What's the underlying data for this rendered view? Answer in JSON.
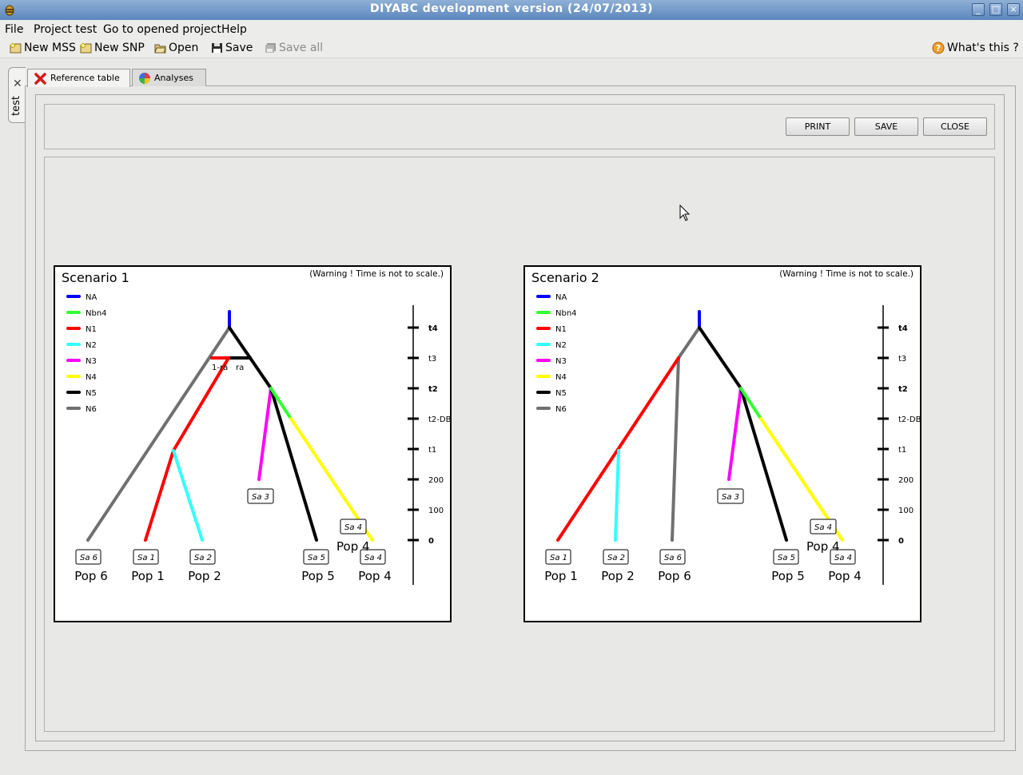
{
  "window": {
    "title": "DIYABC development version  (24/07/2013)"
  },
  "menu": [
    {
      "label": "File"
    },
    {
      "label": "Project test"
    },
    {
      "label": "Go to opened project"
    },
    {
      "label": "Help"
    }
  ],
  "toolbar": {
    "new_mss": "New MSS",
    "new_snp": "New SNP",
    "open": "Open",
    "save": "Save",
    "save_all": "Save all",
    "whats_this": "What's this ?"
  },
  "project_tab": {
    "label": "test"
  },
  "tabs": [
    {
      "label": "Reference table"
    },
    {
      "label": "Analyses"
    }
  ],
  "buttons": {
    "print": "PRINT",
    "save": "SAVE",
    "close": "CLOSE"
  },
  "legend_colors": {
    "NA": "#0000ff",
    "Nbn4": "#33ff33",
    "N1": "#ff0000",
    "N2": "#33ffff",
    "N3": "#ff00ff",
    "N4": "#ffff00",
    "N5": "#000000",
    "N6": "#707070"
  },
  "scenarios": [
    {
      "title": "Scenario 1",
      "warning": "(Warning ! Time is not to scale.)",
      "legend": [
        "NA",
        "Nbn4",
        "N1",
        "N2",
        "N3",
        "N4",
        "N5",
        "N6"
      ],
      "time_ticks": [
        "t4",
        "t3",
        "t2",
        "t2-DB",
        "t1",
        "200",
        "100",
        "0"
      ],
      "admix_labels": [
        "1-ra",
        "ra"
      ],
      "pops": [
        "Pop 6",
        "Pop 1",
        "Pop 2",
        "Pop 5",
        "Pop 4"
      ],
      "samples": [
        "Sa 6",
        "Sa 1",
        "Sa 2",
        "Sa 5",
        "Sa 4",
        "Sa 3",
        "Sa 4"
      ],
      "pop_extra": "Pop 4"
    },
    {
      "title": "Scenario 2",
      "warning": "(Warning ! Time is not to scale.)",
      "legend": [
        "NA",
        "Nbn4",
        "N1",
        "N2",
        "N3",
        "N4",
        "N5",
        "N6"
      ],
      "time_ticks": [
        "t4",
        "t3",
        "t2",
        "t2-DB",
        "t1",
        "200",
        "100",
        "0"
      ],
      "pops": [
        "Pop 1",
        "Pop 2",
        "Pop 6",
        "Pop 5",
        "Pop 4"
      ],
      "samples": [
        "Sa 1",
        "Sa 2",
        "Sa 6",
        "Sa 5",
        "Sa 4",
        "Sa 3",
        "Sa 4"
      ],
      "pop_extra": "Pop 4"
    }
  ]
}
